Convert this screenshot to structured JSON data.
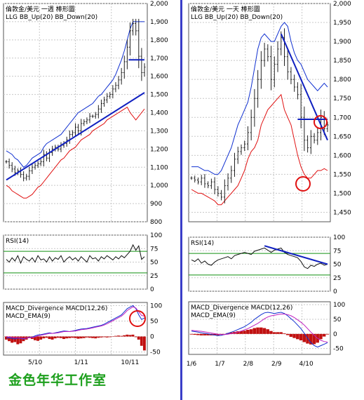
{
  "caption": "金色年华工作室",
  "chart_data": [
    {
      "type": "line",
      "panel": "left-price",
      "title": "倫敦金/美元 一週 棒形圖",
      "legend": [
        "LLG",
        "BB_Up(20)",
        "BB_Down(20)"
      ],
      "y_ticks": [
        "2,000",
        "1,900",
        "1,800",
        "1,700",
        "1,600",
        "1,500",
        "1,400",
        "1,300",
        "1,200",
        "1,100",
        "1,000",
        "900",
        "800"
      ],
      "ylim": [
        800,
        2000
      ],
      "x_ticks": [
        "5/10",
        "1/11",
        "10/11"
      ],
      "x": [
        0,
        4,
        8,
        12,
        16,
        20,
        24,
        28,
        32,
        36,
        40,
        44,
        48,
        52,
        56,
        60,
        64,
        68,
        72,
        76,
        80,
        84,
        88,
        92,
        96,
        100,
        104,
        108,
        112,
        116,
        120,
        124,
        128,
        132,
        136,
        140,
        144,
        148,
        152,
        156,
        160,
        164,
        168,
        172,
        176,
        180,
        184,
        188,
        192
      ],
      "series": [
        {
          "name": "LLG",
          "values": [
            1130,
            1110,
            1090,
            1070,
            1080,
            1060,
            1040,
            1050,
            1080,
            1100,
            1110,
            1120,
            1130,
            1170,
            1150,
            1180,
            1200,
            1210,
            1200,
            1220,
            1230,
            1250,
            1280,
            1290,
            1320,
            1300,
            1340,
            1350,
            1360,
            1380,
            1380,
            1390,
            1420,
            1450,
            1470,
            1490,
            1500,
            1530,
            1550,
            1580,
            1620,
            1680,
            1760,
            1850,
            1890,
            1850,
            1710,
            1620,
            1650
          ]
        },
        {
          "name": "BB_Up(20)",
          "values": [
            1190,
            1180,
            1170,
            1150,
            1140,
            1120,
            1100,
            1110,
            1130,
            1150,
            1160,
            1170,
            1180,
            1210,
            1230,
            1240,
            1250,
            1260,
            1270,
            1280,
            1300,
            1320,
            1340,
            1360,
            1380,
            1400,
            1410,
            1420,
            1430,
            1440,
            1450,
            1470,
            1490,
            1500,
            1520,
            1540,
            1560,
            1580,
            1610,
            1650,
            1690,
            1740,
            1800,
            1860,
            1900,
            1900,
            1900,
            1900,
            1900
          ]
        },
        {
          "name": "BB_Down(20)",
          "values": [
            1000,
            990,
            970,
            960,
            950,
            940,
            930,
            930,
            940,
            950,
            970,
            990,
            1000,
            1020,
            1040,
            1060,
            1080,
            1100,
            1120,
            1140,
            1150,
            1170,
            1190,
            1200,
            1210,
            1230,
            1250,
            1260,
            1270,
            1280,
            1300,
            1310,
            1320,
            1330,
            1340,
            1360,
            1370,
            1380,
            1390,
            1400,
            1410,
            1420,
            1430,
            1400,
            1380,
            1360,
            1380,
            1400,
            1420
          ]
        },
        {
          "name": "trendline",
          "values": [
            1030,
            1510
          ],
          "x": [
            0,
            192
          ]
        },
        {
          "name": "level",
          "values": [
            1690,
            1690
          ],
          "x": [
            170,
            192
          ]
        }
      ]
    },
    {
      "type": "line",
      "panel": "left-rsi",
      "title": "RSI(14)",
      "y_ticks": [
        "100",
        "75",
        "50",
        "25",
        "0"
      ],
      "ylim": [
        0,
        100
      ],
      "series": [
        {
          "name": "RSI(14)",
          "values": [
            55,
            50,
            58,
            52,
            62,
            48,
            60,
            55,
            52,
            58,
            50,
            62,
            54,
            56,
            50,
            60,
            52,
            58,
            55,
            62,
            50,
            56,
            60,
            54,
            58,
            52,
            60,
            55,
            50,
            62,
            56,
            58,
            52,
            60,
            56,
            62,
            58,
            54,
            60,
            56,
            62,
            58,
            64,
            70,
            82,
            72,
            80,
            55,
            60
          ]
        }
      ]
    },
    {
      "type": "bar",
      "panel": "left-macd",
      "title": "MACD_Divergence",
      "legend": [
        "MACD_Divergence",
        "MACD(12,26)",
        "MACD_EMA(9)"
      ],
      "y_ticks": [
        "100",
        "50",
        "0",
        "-50"
      ],
      "ylim": [
        -60,
        110
      ],
      "series": [
        {
          "name": "MACD(12,26)",
          "values": [
            -5,
            -4,
            -6,
            -8,
            -5,
            -6,
            -8,
            -5,
            -3,
            -2,
            2,
            5,
            6,
            8,
            10,
            12,
            10,
            12,
            14,
            16,
            18,
            17,
            16,
            18,
            20,
            22,
            24,
            25,
            26,
            28,
            30,
            32,
            34,
            36,
            40,
            45,
            50,
            55,
            60,
            65,
            70,
            80,
            90,
            95,
            100,
            90,
            70,
            55,
            60
          ]
        },
        {
          "name": "MACD_EMA(9)",
          "values": [
            0,
            -2,
            -3,
            -4,
            -4,
            -5,
            -6,
            -5,
            -4,
            -3,
            -1,
            2,
            4,
            6,
            8,
            10,
            10,
            11,
            12,
            14,
            16,
            16,
            16,
            17,
            18,
            20,
            22,
            23,
            24,
            26,
            28,
            30,
            32,
            34,
            37,
            41,
            46,
            51,
            56,
            61,
            66,
            74,
            84,
            90,
            96,
            92,
            80,
            68,
            66
          ]
        },
        {
          "name": "MACD_Divergence",
          "values": [
            -10,
            -15,
            -20,
            -18,
            -25,
            -22,
            -15,
            -10,
            -5,
            -8,
            -12,
            -14,
            -10,
            -6,
            -4,
            -8,
            -10,
            -6,
            -4,
            -5,
            -8,
            -6,
            -5,
            -4,
            -5,
            -7,
            -6,
            -5,
            -3,
            -4,
            -5,
            -6,
            -4,
            -3,
            -2,
            -3,
            -2,
            -1,
            2,
            3,
            2,
            4,
            6,
            5,
            6,
            -2,
            -10,
            -30,
            -45
          ]
        }
      ],
      "x_ticks": [
        "5/10",
        "1/11",
        "10/11"
      ]
    },
    {
      "type": "line",
      "panel": "right-price",
      "title": "倫敦金/美元 一天 棒形圖",
      "legend": [
        "LLG",
        "BB_Up(20)",
        "BB_Down(20)"
      ],
      "y_ticks": [
        "2,000",
        "1,950",
        "1,900",
        "1,850",
        "1,800",
        "1,750",
        "1,700",
        "1,650",
        "1,600",
        "1,550",
        "1,500",
        "1,450"
      ],
      "ylim": [
        1425,
        2000
      ],
      "x_ticks": [
        "1/6",
        "1/7",
        "2/8",
        "2/9",
        "4/10"
      ],
      "series": [
        {
          "name": "LLG",
          "values": [
            1540,
            1535,
            1530,
            1540,
            1525,
            1520,
            1530,
            1510,
            1500,
            1490,
            1520,
            1540,
            1560,
            1590,
            1610,
            1620,
            1630,
            1660,
            1700,
            1750,
            1800,
            1850,
            1880,
            1860,
            1800,
            1840,
            1880,
            1910,
            1860,
            1820,
            1800,
            1780,
            1760,
            1700,
            1640,
            1620,
            1650,
            1640,
            1660,
            1700,
            1670,
            1680
          ]
        },
        {
          "name": "BB_Up(20)",
          "values": [
            1570,
            1570,
            1570,
            1565,
            1560,
            1560,
            1555,
            1550,
            1550,
            1560,
            1580,
            1600,
            1620,
            1650,
            1680,
            1700,
            1720,
            1740,
            1780,
            1830,
            1880,
            1910,
            1920,
            1910,
            1900,
            1900,
            1920,
            1940,
            1950,
            1940,
            1900,
            1870,
            1850,
            1840,
            1820,
            1800,
            1790,
            1780,
            1770,
            1780,
            1790,
            1780
          ]
        },
        {
          "name": "BB_Down(20)",
          "values": [
            1510,
            1505,
            1500,
            1500,
            1495,
            1490,
            1485,
            1480,
            1470,
            1470,
            1480,
            1490,
            1500,
            1510,
            1520,
            1540,
            1560,
            1590,
            1610,
            1620,
            1640,
            1680,
            1700,
            1720,
            1730,
            1740,
            1750,
            1760,
            1720,
            1700,
            1680,
            1640,
            1600,
            1570,
            1550,
            1540,
            1540,
            1550,
            1560,
            1560,
            1565,
            1560
          ]
        },
        {
          "name": "trendline",
          "values": [
            1920,
            1640
          ],
          "x": [
            27,
            41
          ]
        },
        {
          "name": "level",
          "values": [
            1695,
            1695
          ],
          "x": [
            32,
            41
          ]
        }
      ]
    },
    {
      "type": "line",
      "panel": "right-rsi",
      "title": "RSI(14)",
      "y_ticks": [
        "100",
        "75",
        "50",
        "25",
        "0"
      ],
      "ylim": [
        0,
        100
      ],
      "series": [
        {
          "name": "RSI(14)",
          "values": [
            58,
            55,
            60,
            52,
            56,
            50,
            48,
            54,
            58,
            60,
            62,
            64,
            60,
            66,
            68,
            70,
            72,
            70,
            68,
            74,
            76,
            78,
            80,
            76,
            72,
            76,
            78,
            80,
            72,
            68,
            66,
            64,
            62,
            55,
            45,
            42,
            48,
            46,
            50,
            52,
            48,
            50
          ]
        }
      ]
    },
    {
      "type": "bar",
      "panel": "right-macd",
      "title": "MACD_Divergence",
      "legend": [
        "MACD_Divergence",
        "MACD(12,26)",
        "MACD_EMA(9)"
      ],
      "y_ticks": [
        "100",
        "50",
        "0",
        "-50"
      ],
      "ylim": [
        -70,
        110
      ],
      "x_ticks": [
        "1/6",
        "1/7",
        "2/8",
        "2/9",
        "4/10"
      ],
      "series": [
        {
          "name": "MACD(12,26)",
          "values": [
            10,
            8,
            6,
            4,
            2,
            0,
            -2,
            -4,
            -6,
            -5,
            -2,
            2,
            6,
            10,
            15,
            20,
            25,
            32,
            40,
            50,
            58,
            66,
            72,
            74,
            72,
            70,
            72,
            74,
            70,
            62,
            52,
            42,
            30,
            18,
            2,
            -15,
            -30,
            -40,
            -45,
            -40,
            -35,
            -30
          ]
        },
        {
          "name": "MACD_EMA(9)",
          "values": [
            12,
            11,
            10,
            9,
            7,
            5,
            3,
            1,
            -1,
            -2,
            -2,
            -1,
            1,
            3,
            6,
            10,
            14,
            18,
            24,
            30,
            36,
            44,
            52,
            58,
            62,
            64,
            66,
            68,
            68,
            66,
            62,
            56,
            48,
            40,
            30,
            18,
            6,
            -5,
            -15,
            -22,
            -26,
            -28
          ]
        },
        {
          "name": "MACD_Divergence",
          "values": [
            -2,
            -3,
            -4,
            -5,
            -5,
            -5,
            -5,
            -5,
            -5,
            -3,
            0,
            3,
            5,
            7,
            9,
            10,
            11,
            14,
            16,
            20,
            22,
            22,
            20,
            16,
            10,
            6,
            6,
            6,
            2,
            -4,
            -10,
            -14,
            -18,
            -22,
            -28,
            -33,
            -36,
            -35,
            -30,
            -18,
            -9,
            -2
          ]
        }
      ]
    }
  ]
}
